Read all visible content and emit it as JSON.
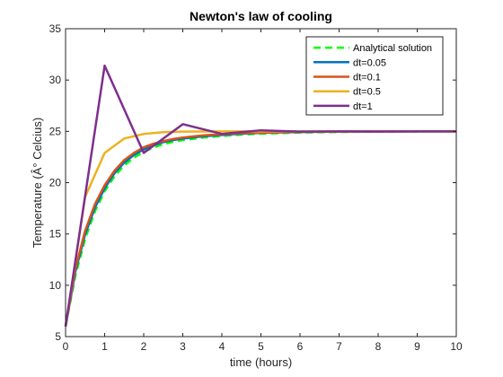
{
  "chart_data": {
    "type": "line",
    "title": "Newton's law of cooling",
    "xlabel": "time (hours)",
    "ylabel": "Temperature (Â° Celcius)",
    "xlim": [
      0,
      10
    ],
    "ylim": [
      5,
      35
    ],
    "xticks": [
      0,
      1,
      2,
      3,
      4,
      5,
      6,
      7,
      8,
      9,
      10
    ],
    "yticks": [
      5,
      10,
      15,
      20,
      25,
      30,
      35
    ],
    "grid": false,
    "legend_position": "top-right",
    "series": [
      {
        "name": "Analytical solution",
        "color": "#00ff00",
        "dash": "dashed",
        "x": [
          0,
          0.25,
          0.5,
          0.75,
          1,
          1.25,
          1.5,
          1.75,
          2,
          2.25,
          2.5,
          2.75,
          3,
          3.5,
          4,
          4.5,
          5,
          6,
          7,
          8,
          9,
          10
        ],
        "y": [
          6,
          10.94,
          14.52,
          17.19,
          19.17,
          20.62,
          21.67,
          22.44,
          23.0,
          23.43,
          23.75,
          23.98,
          24.15,
          24.38,
          24.55,
          24.68,
          24.77,
          24.88,
          24.94,
          24.97,
          24.99,
          25.0
        ]
      },
      {
        "name": "dt=0.05",
        "color": "#0072bd",
        "dash": "solid",
        "x": [
          0,
          0.25,
          0.5,
          0.75,
          1,
          1.25,
          1.5,
          1.75,
          2,
          2.25,
          2.5,
          2.75,
          3,
          3.5,
          4,
          4.5,
          5,
          6,
          7,
          8,
          9,
          10
        ],
        "y": [
          6,
          11.3,
          14.95,
          17.55,
          19.45,
          20.9,
          21.95,
          22.7,
          23.25,
          23.65,
          23.95,
          24.15,
          24.3,
          24.5,
          24.65,
          24.77,
          24.85,
          24.93,
          24.97,
          24.99,
          25.0,
          25.0
        ]
      },
      {
        "name": "dt=0.1",
        "color": "#d95319",
        "dash": "solid",
        "x": [
          0,
          0.25,
          0.5,
          0.75,
          1,
          1.25,
          1.5,
          1.75,
          2,
          2.25,
          2.5,
          2.75,
          3,
          3.5,
          4,
          4.5,
          5,
          6,
          7,
          8,
          9,
          10
        ],
        "y": [
          6,
          11.6,
          15.3,
          17.9,
          19.75,
          21.15,
          22.2,
          22.9,
          23.45,
          23.8,
          24.05,
          24.25,
          24.4,
          24.6,
          24.72,
          24.82,
          24.88,
          24.95,
          24.98,
          24.99,
          25.0,
          25.0
        ]
      },
      {
        "name": "dt=0.5",
        "color": "#edb120",
        "dash": "solid",
        "x": [
          0,
          0.5,
          1,
          1.5,
          2,
          2.5,
          3,
          3.5,
          4,
          4.5,
          5,
          5.5,
          6,
          6.5,
          7,
          7.5,
          8,
          8.5,
          9,
          9.5,
          10
        ],
        "y": [
          6,
          18.6,
          22.9,
          24.3,
          24.75,
          24.92,
          24.97,
          24.99,
          25.0,
          25.0,
          25.0,
          25.0,
          25.0,
          25.0,
          25.0,
          25.0,
          25.0,
          25.0,
          25.0,
          25.0,
          25.0
        ]
      },
      {
        "name": "dt=1",
        "color": "#7e2f8e",
        "dash": "solid",
        "x": [
          0,
          1,
          2,
          3,
          4,
          5,
          6,
          7,
          8,
          9,
          10
        ],
        "y": [
          6,
          31.4,
          22.9,
          25.7,
          24.75,
          25.1,
          24.97,
          25.0,
          24.99,
          25.0,
          25.0
        ]
      }
    ]
  }
}
